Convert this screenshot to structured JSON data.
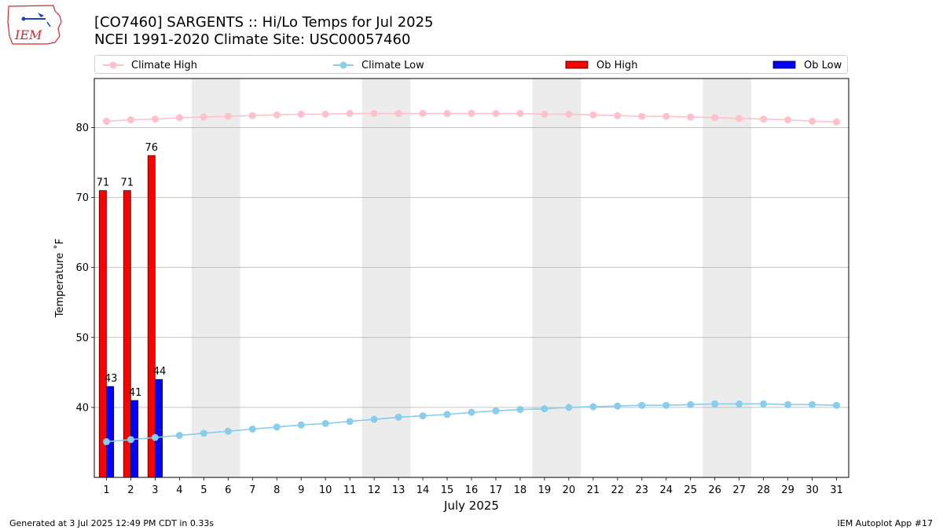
{
  "header": {
    "title_line1": "[CO7460] SARGENTS :: Hi/Lo Temps for Jul 2025",
    "title_line2": "NCEI 1991-2020 Climate Site: USC00057460"
  },
  "logo": {
    "text": "IEM",
    "color": "#d62728"
  },
  "legend": {
    "climate_high": "Climate High",
    "climate_low": "Climate Low",
    "ob_high": "Ob High",
    "ob_low": "Ob Low"
  },
  "footer": {
    "left": "Generated at 3 Jul 2025 12:49 PM CDT in 0.33s",
    "right": "IEM Autoplot App #17"
  },
  "chart_data": {
    "type": "bar",
    "xlabel": "July 2025",
    "ylabel": "Temperature ˚F",
    "ylim": [
      30,
      87
    ],
    "yticks": [
      40,
      50,
      60,
      70,
      80
    ],
    "grid": "horizontal",
    "legend_position": "top",
    "x": [
      1,
      2,
      3,
      4,
      5,
      6,
      7,
      8,
      9,
      10,
      11,
      12,
      13,
      14,
      15,
      16,
      17,
      18,
      19,
      20,
      21,
      22,
      23,
      24,
      25,
      26,
      27,
      28,
      29,
      30,
      31
    ],
    "weekend_shading": [
      [
        5,
        6
      ],
      [
        12,
        13
      ],
      [
        19,
        20
      ],
      [
        26,
        27
      ]
    ],
    "series": [
      {
        "name": "Climate High",
        "kind": "line",
        "color": "#ffc0cb",
        "values": [
          80.9,
          81.1,
          81.2,
          81.4,
          81.5,
          81.6,
          81.7,
          81.8,
          81.9,
          81.9,
          82.0,
          82.0,
          82.0,
          82.0,
          82.0,
          82.0,
          82.0,
          82.0,
          81.9,
          81.9,
          81.8,
          81.7,
          81.6,
          81.6,
          81.5,
          81.4,
          81.3,
          81.2,
          81.1,
          80.9,
          80.8
        ]
      },
      {
        "name": "Climate Low",
        "kind": "line",
        "color": "#87ceeb",
        "values": [
          35.1,
          35.4,
          35.7,
          36.0,
          36.3,
          36.6,
          36.9,
          37.2,
          37.5,
          37.7,
          38.0,
          38.3,
          38.6,
          38.8,
          39.0,
          39.3,
          39.5,
          39.7,
          39.8,
          40.0,
          40.1,
          40.2,
          40.3,
          40.3,
          40.4,
          40.5,
          40.5,
          40.5,
          40.4,
          40.4,
          40.3
        ]
      },
      {
        "name": "Ob High",
        "kind": "bar",
        "color": "#ff0000",
        "x": [
          1,
          2,
          3
        ],
        "values": [
          71,
          71,
          76
        ]
      },
      {
        "name": "Ob Low",
        "kind": "bar",
        "color": "#0000ff",
        "x": [
          1,
          2,
          3
        ],
        "values": [
          43,
          41,
          44
        ]
      }
    ]
  }
}
